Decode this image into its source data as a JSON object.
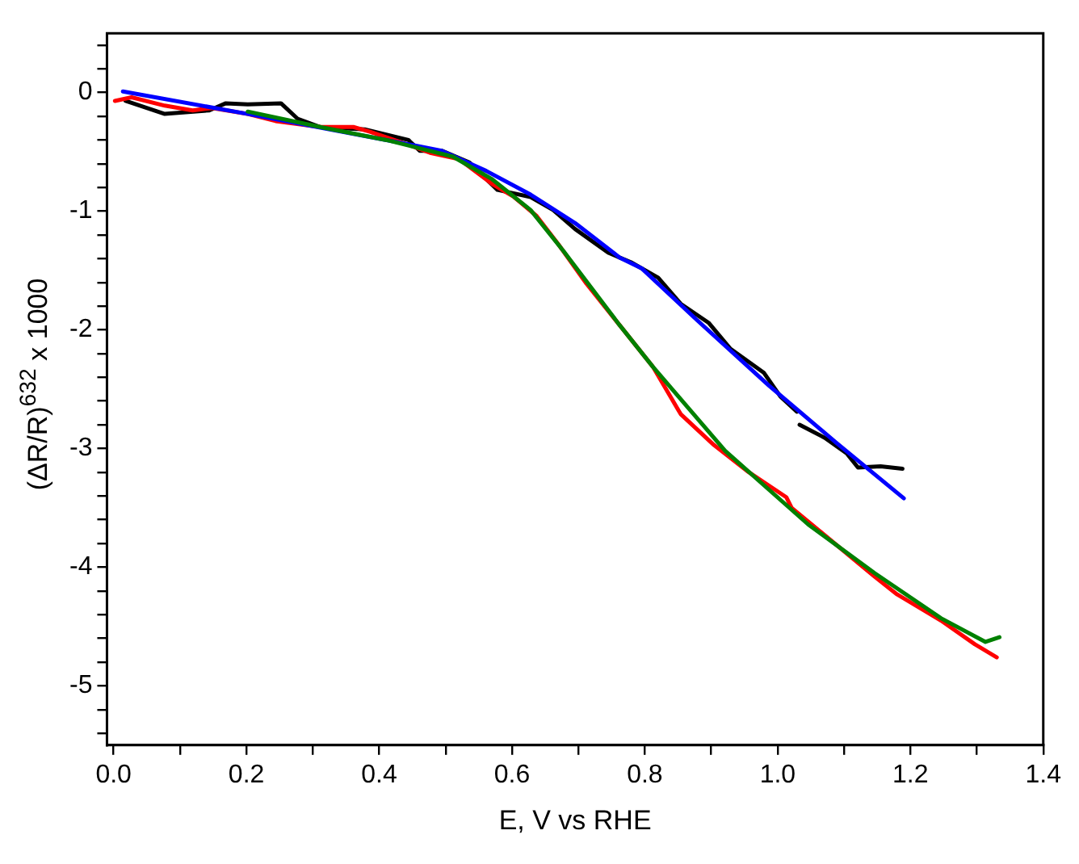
{
  "chart_data": {
    "type": "line",
    "xlabel": "E, V vs RHE",
    "ylabel": "(ΔR/R)$^{632}$ x 1000",
    "xlim": [
      -0.01,
      1.4
    ],
    "ylim": [
      -5.5,
      0.5
    ],
    "xticks": [
      {
        "value": 0,
        "label": "0.0"
      },
      {
        "value": 0.1,
        "label": null
      },
      0.2,
      {
        "value": 0.3,
        "label": null
      },
      0.4,
      {
        "value": 0.5,
        "label": null
      },
      0.6,
      {
        "value": 0.7,
        "label": null
      },
      0.8,
      {
        "value": 0.9,
        "label": null
      },
      {
        "value": 1,
        "label": "1.0"
      },
      {
        "value": 1.1,
        "label": null
      },
      1.2,
      {
        "value": 1.3,
        "label": null
      },
      1.4
    ],
    "yticks": [
      {
        "value": 0.4,
        "label": null
      },
      {
        "value": 0.2,
        "label": null
      },
      0,
      {
        "value": -0.2,
        "label": null
      },
      {
        "value": -0.4,
        "label": null
      },
      {
        "value": -0.6,
        "label": null
      },
      {
        "value": -0.8,
        "label": null
      },
      -1,
      {
        "value": -1.2,
        "label": null
      },
      {
        "value": -1.4,
        "label": null
      },
      {
        "value": -1.6,
        "label": null
      },
      {
        "value": -1.8,
        "label": null
      },
      -2,
      {
        "value": -2.2,
        "label": null
      },
      {
        "value": -2.4,
        "label": null
      },
      {
        "value": -2.6,
        "label": null
      },
      {
        "value": -2.8,
        "label": null
      },
      -3,
      {
        "value": -3.2,
        "label": null
      },
      {
        "value": -3.4,
        "label": null
      },
      {
        "value": -3.6,
        "label": null
      },
      {
        "value": -3.8,
        "label": null
      },
      -4,
      {
        "value": -4.2,
        "label": null
      },
      {
        "value": -4.4,
        "label": null
      },
      {
        "value": -4.6,
        "label": null
      },
      {
        "value": -4.8,
        "label": null
      },
      -5,
      {
        "value": -5.2,
        "label": null
      },
      {
        "value": -5.4,
        "label": null
      }
    ],
    "grid": false,
    "legend": false,
    "marker": "none",
    "line_style": "solid",
    "series": [
      {
        "color": "#000000",
        "x": [
          0.018,
          0.077,
          0.144,
          0.169,
          0.202,
          0.252,
          0.277,
          0.311,
          0.378,
          0.444,
          0.461,
          0.494,
          0.536,
          0.578,
          0.628,
          0.662,
          0.695,
          0.745,
          0.779,
          0.82,
          0.854,
          0.896,
          0.929,
          0.979,
          1.004,
          1.029,
          1.031,
          1.033,
          1.071,
          1.104,
          1.121,
          1.155,
          1.188
        ],
        "values": [
          -0.07,
          -0.18,
          -0.15,
          -0.09,
          -0.1,
          -0.09,
          -0.22,
          -0.29,
          -0.31,
          -0.4,
          -0.49,
          -0.49,
          -0.59,
          -0.82,
          -0.88,
          -0.99,
          -1.15,
          -1.35,
          -1.43,
          -1.56,
          -1.78,
          -1.94,
          -2.16,
          -2.36,
          -2.56,
          -2.69,
          null,
          -2.8,
          -2.91,
          -3.04,
          -3.16,
          -3.15,
          -3.17
        ]
      },
      {
        "color": "#ff0000",
        "x": [
          0.002,
          0.027,
          0.077,
          0.119,
          0.148,
          0.202,
          0.244,
          0.311,
          0.361,
          0.386,
          0.444,
          0.478,
          0.52,
          0.57,
          0.603,
          0.637,
          0.67,
          0.712,
          0.762,
          0.812,
          0.854,
          0.904,
          0.954,
          1.013,
          1.021,
          1.088,
          1.146,
          1.18,
          1.246,
          1.297,
          1.33
        ],
        "values": [
          -0.07,
          -0.04,
          -0.11,
          -0.15,
          -0.13,
          -0.18,
          -0.24,
          -0.29,
          -0.29,
          -0.33,
          -0.44,
          -0.51,
          -0.56,
          -0.77,
          -0.88,
          -1.04,
          -1.28,
          -1.61,
          -1.96,
          -2.31,
          -2.71,
          -2.97,
          -3.19,
          -3.41,
          -3.5,
          -3.81,
          -4.08,
          -4.23,
          -4.45,
          -4.65,
          -4.76
        ]
      },
      {
        "color": "#0000ff",
        "x": [
          0.014,
          0.202,
          0.411,
          0.494,
          0.561,
          0.628,
          0.695,
          0.762,
          0.795,
          0.879,
          0.987,
          1.088,
          1.19
        ],
        "values": [
          0.01,
          -0.18,
          -0.4,
          -0.49,
          -0.66,
          -0.86,
          -1.1,
          -1.39,
          -1.48,
          -1.92,
          -2.47,
          -2.95,
          -3.42
        ]
      },
      {
        "color": "#008000",
        "x": [
          0.202,
          0.311,
          0.411,
          0.511,
          0.57,
          0.628,
          0.678,
          0.762,
          0.812,
          0.921,
          1.046,
          1.146,
          1.246,
          1.313,
          1.334
        ],
        "values": [
          -0.16,
          -0.29,
          -0.4,
          -0.54,
          -0.73,
          -0.99,
          -1.34,
          -1.96,
          -2.31,
          -3.02,
          -3.64,
          -4.05,
          -4.43,
          -4.63,
          -4.59
        ]
      }
    ]
  }
}
